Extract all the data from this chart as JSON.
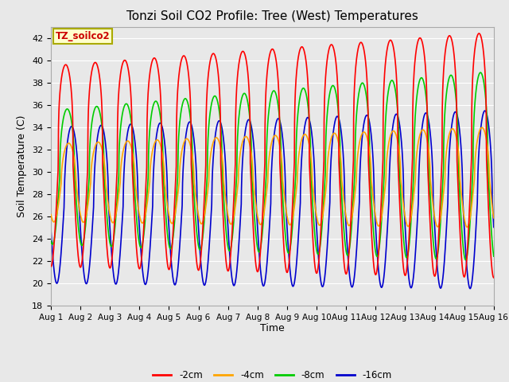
{
  "title": "Tonzi Soil CO2 Profile: Tree (West) Temperatures",
  "xlabel": "Time",
  "ylabel": "Soil Temperature (C)",
  "ylim": [
    18,
    43
  ],
  "xlim": [
    0,
    15
  ],
  "plot_bg_color": "#e8e8e8",
  "grid_color": "#ffffff",
  "legend_label": "TZ_soilco2",
  "series": {
    "-2cm": {
      "color": "#ff0000",
      "lw": 1.2
    },
    "-4cm": {
      "color": "#ffa500",
      "lw": 1.2
    },
    "-8cm": {
      "color": "#00cc00",
      "lw": 1.2
    },
    "-16cm": {
      "color": "#0000cd",
      "lw": 1.2
    }
  },
  "xtick_labels": [
    "Aug 1",
    "Aug 2",
    "Aug 3",
    "Aug 4",
    "Aug 5",
    "Aug 6",
    "Aug 7",
    "Aug 8",
    "Aug 9",
    "Aug 10",
    "Aug 11",
    "Aug 12",
    "Aug 13",
    "Aug 14",
    "Aug 15",
    "Aug 16"
  ],
  "ytick_labels": [
    18,
    20,
    22,
    24,
    26,
    28,
    30,
    32,
    34,
    36,
    38,
    40,
    42
  ],
  "num_days": 15,
  "pts_per_day": 144
}
